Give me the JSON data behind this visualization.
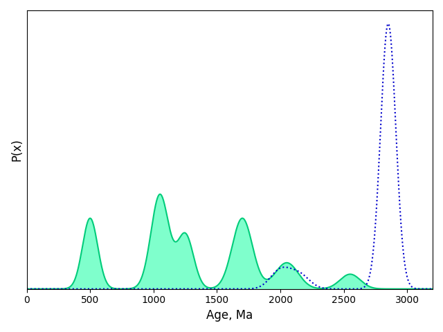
{
  "green_peaks": [
    500,
    1050,
    1250,
    1700,
    2050,
    2550
  ],
  "green_weights": [
    0.18,
    0.28,
    0.15,
    0.24,
    0.1,
    0.05
  ],
  "green_sigmas": [
    60,
    70,
    65,
    80,
    90,
    80
  ],
  "blue_peaks": [
    2000,
    2150,
    2850
  ],
  "blue_weights": [
    0.08,
    0.06,
    0.86
  ],
  "blue_sigmas": [
    80,
    80,
    60
  ],
  "x_min": 0,
  "x_max": 3200,
  "xlabel": "Age, Ma",
  "ylabel": "P(x)",
  "green_color": "#00FF9A",
  "green_edge_color": "#00CC7A",
  "blue_color": "#0000CC",
  "bg_color": "#FFFFFF",
  "xticks": [
    0,
    500,
    1000,
    1500,
    2000,
    2500,
    3000
  ],
  "scale_green": 1.0,
  "scale_blue": 1.0
}
